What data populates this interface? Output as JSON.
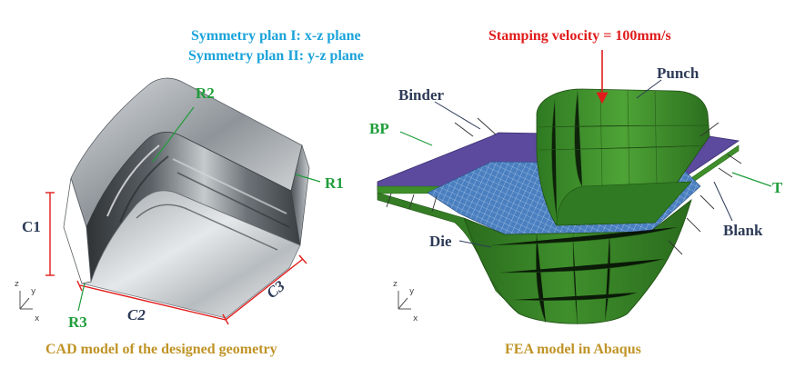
{
  "symmetry": {
    "plane1": "Symmetry plan I: x-z plane",
    "plane2": "Symmetry plan II: y-z plane"
  },
  "velocity": "Stamping velocity = 100mm/s",
  "cad": {
    "labels": {
      "r1": "R1",
      "r2": "R2",
      "r3": "R3",
      "c1": "C1",
      "c2": "C2",
      "c3": "C3"
    },
    "caption": "CAD model of the designed geometry"
  },
  "fea": {
    "labels": {
      "binder": "Binder",
      "punch": "Punch",
      "bp": "BP",
      "t": "T",
      "blank": "Blank",
      "die": "Die"
    },
    "caption": "FEA model in Abaqus"
  },
  "axes": {
    "z": "z",
    "y": "y",
    "x": "x"
  },
  "colors": {
    "symmetry_text": "#1aa3d9",
    "velocity_text": "#e01b1b",
    "green_label": "#1f9d3a",
    "navy_label": "#2d3b57",
    "caption": "#c09326",
    "punch_green": "#3e8e2a",
    "binder_purple": "#5b4a9e",
    "blank_blue": "#3a6fb0"
  }
}
